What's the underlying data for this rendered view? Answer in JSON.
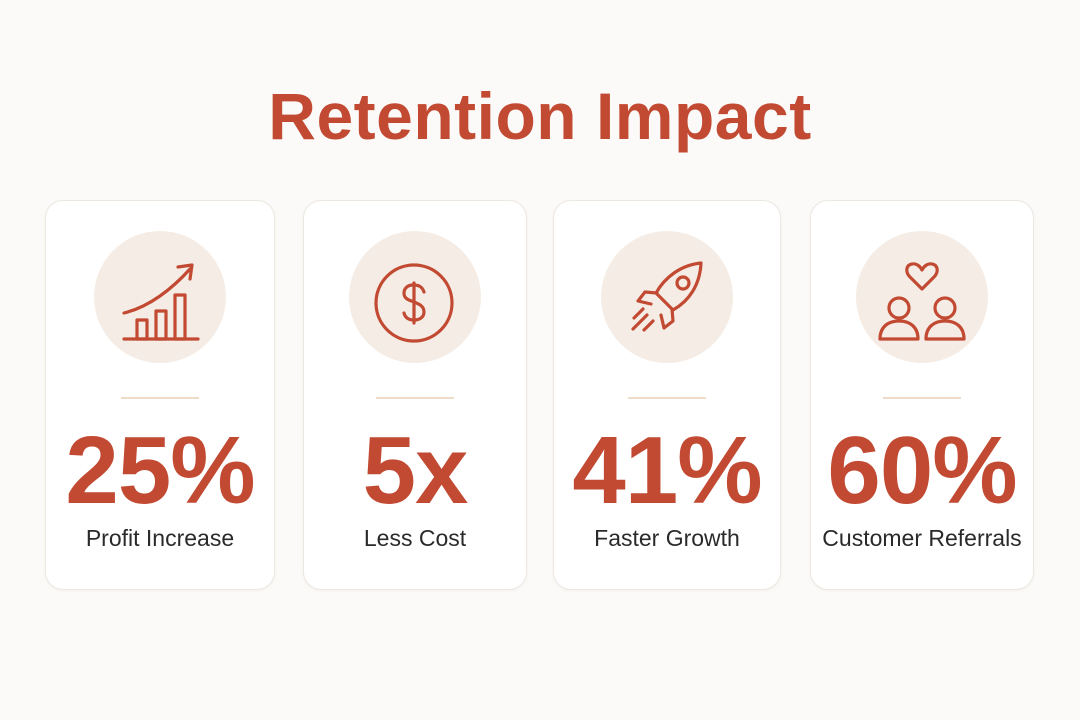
{
  "title": "Retention Impact",
  "colors": {
    "accent": "#c24a33",
    "icon_bg": "#f5ede5",
    "divider": "#eedcc9",
    "background": "#fbfaf8",
    "card": "#ffffff"
  },
  "cards": [
    {
      "icon": "growth-chart-icon",
      "value": "25%",
      "label": "Profit Increase"
    },
    {
      "icon": "dollar-icon",
      "value": "5x",
      "label": "Less Cost"
    },
    {
      "icon": "rocket-icon",
      "value": "41%",
      "label": "Faster Growth"
    },
    {
      "icon": "people-heart-icon",
      "value": "60%",
      "label": "Customer Referrals"
    }
  ]
}
